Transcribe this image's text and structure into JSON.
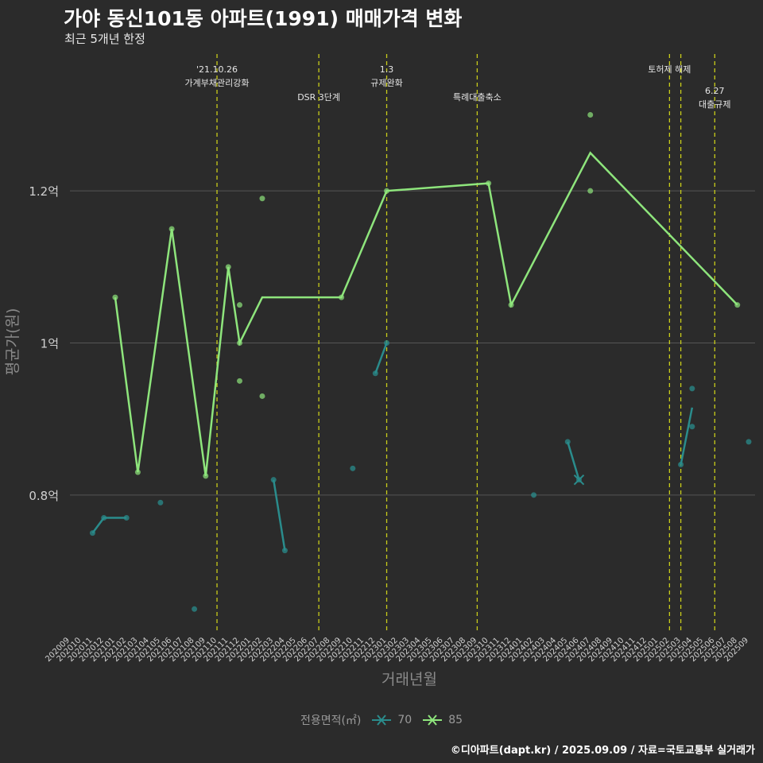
{
  "header": {
    "title": "가야 동신101동 아파트(1991) 매매가격 변화",
    "subtitle": "최근 5개년 한정"
  },
  "caption": "©디아파트(dapt.kr) / 2025.09.09 / 자료=국토교통부 실거래가",
  "colors": {
    "background": "#2b2b2b",
    "grid": "#555555",
    "series_70": "#2a8c8c",
    "series_85": "#8ee57c",
    "event_line": "#c8cc1a",
    "axis_text": "#d0d0d0",
    "axis_title": "#8a8a8a"
  },
  "legend": {
    "title": "전용면적(㎡)",
    "items": [
      {
        "name": "70",
        "color": "#2a8c8c",
        "icon": "line-cross-icon"
      },
      {
        "name": "85",
        "color": "#8ee57c",
        "icon": "line-cross-icon"
      }
    ]
  },
  "chart_data": {
    "type": "line",
    "title": "가야 동신101동 아파트(1991) 매매가격 변화",
    "subtitle": "최근 5개년 한정",
    "xlabel": "거래년월",
    "ylabel": "평균가(원)",
    "categories": [
      "202009",
      "202010",
      "202011",
      "202012",
      "202101",
      "202102",
      "202103",
      "202104",
      "202105",
      "202106",
      "202107",
      "202108",
      "202109",
      "202110",
      "202111",
      "202112",
      "202201",
      "202202",
      "202203",
      "202204",
      "202205",
      "202206",
      "202207",
      "202208",
      "202209",
      "202210",
      "202211",
      "202212",
      "202301",
      "202302",
      "202303",
      "202304",
      "202305",
      "202306",
      "202307",
      "202308",
      "202309",
      "202310",
      "202311",
      "202312",
      "202401",
      "202402",
      "202403",
      "202404",
      "202405",
      "202406",
      "202407",
      "202408",
      "202409",
      "202410",
      "202411",
      "202412",
      "202501",
      "202502",
      "202503",
      "202504",
      "202505",
      "202506",
      "202507",
      "202508",
      "202509"
    ],
    "y_ticks": [
      {
        "value": 0.8,
        "label": "0.8억"
      },
      {
        "value": 1.0,
        "label": "1억"
      },
      {
        "value": 1.2,
        "label": "1.2억"
      }
    ],
    "ylim": [
      0.62,
      1.38
    ],
    "grid": true,
    "legend_position": "bottom",
    "series": [
      {
        "name": "70",
        "line": [
          {
            "x": "202011",
            "y": 0.75
          },
          {
            "x": "202012",
            "y": 0.77
          },
          {
            "x": "202102",
            "y": 0.77
          },
          {
            "x": "202105",
            "y": 0.79
          },
          {
            "x": "202108",
            "y": 0.65
          },
          {
            "x": "202203",
            "y": 0.82
          },
          {
            "x": "202204",
            "y": 0.727
          },
          {
            "x": "202210",
            "y": 0.835
          },
          {
            "x": "202212",
            "y": 0.96
          },
          {
            "x": "202301",
            "y": 1.0
          },
          {
            "x": "202402",
            "y": 0.8
          },
          {
            "x": "202405",
            "y": 0.87
          },
          {
            "x": "202406",
            "y": 0.82
          },
          {
            "x": "202503",
            "y": 0.84
          },
          {
            "x": "202504",
            "y": 0.915
          },
          {
            "x": "202509",
            "y": 0.87
          }
        ],
        "points": [
          {
            "x": "202011",
            "y": 0.75
          },
          {
            "x": "202012",
            "y": 0.77
          },
          {
            "x": "202102",
            "y": 0.77
          },
          {
            "x": "202105",
            "y": 0.79
          },
          {
            "x": "202108",
            "y": 0.65
          },
          {
            "x": "202203",
            "y": 0.82
          },
          {
            "x": "202204",
            "y": 0.727
          },
          {
            "x": "202210",
            "y": 0.835
          },
          {
            "x": "202212",
            "y": 0.96
          },
          {
            "x": "202301",
            "y": 1.0
          },
          {
            "x": "202402",
            "y": 0.8
          },
          {
            "x": "202405",
            "y": 0.87
          },
          {
            "x": "202406",
            "y": 0.82
          },
          {
            "x": "202503",
            "y": 0.84
          },
          {
            "x": "202504",
            "y": 0.94
          },
          {
            "x": "202504",
            "y": 0.89
          },
          {
            "x": "202509",
            "y": 0.87
          }
        ],
        "segments": [
          [
            "202011",
            "202012",
            "202102"
          ],
          [
            "202203",
            "202204"
          ],
          [
            "202212",
            "202301"
          ],
          [
            "202405",
            "202406"
          ],
          [
            "202503",
            "202504"
          ]
        ]
      },
      {
        "name": "85",
        "line": [
          {
            "x": "202101",
            "y": 1.06
          },
          {
            "x": "202103",
            "y": 0.83
          },
          {
            "x": "202106",
            "y": 1.15
          },
          {
            "x": "202109",
            "y": 0.825
          },
          {
            "x": "202111",
            "y": 1.1
          },
          {
            "x": "202112",
            "y": 1.0
          },
          {
            "x": "202202",
            "y": 1.06
          },
          {
            "x": "202209",
            "y": 1.06
          },
          {
            "x": "202301",
            "y": 1.2
          },
          {
            "x": "202310",
            "y": 1.21
          },
          {
            "x": "202312",
            "y": 1.05
          },
          {
            "x": "202407",
            "y": 1.25
          },
          {
            "x": "202508",
            "y": 1.05
          }
        ],
        "points": [
          {
            "x": "202101",
            "y": 1.06
          },
          {
            "x": "202103",
            "y": 0.83
          },
          {
            "x": "202106",
            "y": 1.15
          },
          {
            "x": "202109",
            "y": 0.825
          },
          {
            "x": "202111",
            "y": 1.1
          },
          {
            "x": "202112",
            "y": 1.05
          },
          {
            "x": "202112",
            "y": 1.0
          },
          {
            "x": "202112",
            "y": 0.95
          },
          {
            "x": "202202",
            "y": 1.19
          },
          {
            "x": "202202",
            "y": 0.93
          },
          {
            "x": "202209",
            "y": 1.06
          },
          {
            "x": "202301",
            "y": 1.2
          },
          {
            "x": "202310",
            "y": 1.21
          },
          {
            "x": "202312",
            "y": 1.05
          },
          {
            "x": "202407",
            "y": 1.3
          },
          {
            "x": "202407",
            "y": 1.2
          },
          {
            "x": "202508",
            "y": 1.05
          }
        ]
      }
    ],
    "events": [
      {
        "x": "202110",
        "label_lines": [
          "'21.10.26",
          "가계부채관리강화"
        ],
        "row": 0
      },
      {
        "x": "202207",
        "label_lines": [
          "DSR 3단계"
        ],
        "row": 1
      },
      {
        "x": "202301",
        "label_lines": [
          "1.3",
          "규제완화"
        ],
        "row": 0
      },
      {
        "x": "202309",
        "label_lines": [
          "특례대출축소"
        ],
        "row": 1
      },
      {
        "x": "202502",
        "label_lines": [
          "토허제 해제"
        ],
        "row": 0
      },
      {
        "x": "202503",
        "label_lines": [],
        "row": 0
      },
      {
        "x": "202506",
        "label_lines": [
          "6.27",
          "대출규제"
        ],
        "row": 2
      }
    ],
    "markers": [
      {
        "series": "70",
        "x": "202406",
        "y": 0.82,
        "shape": "cross"
      }
    ]
  }
}
